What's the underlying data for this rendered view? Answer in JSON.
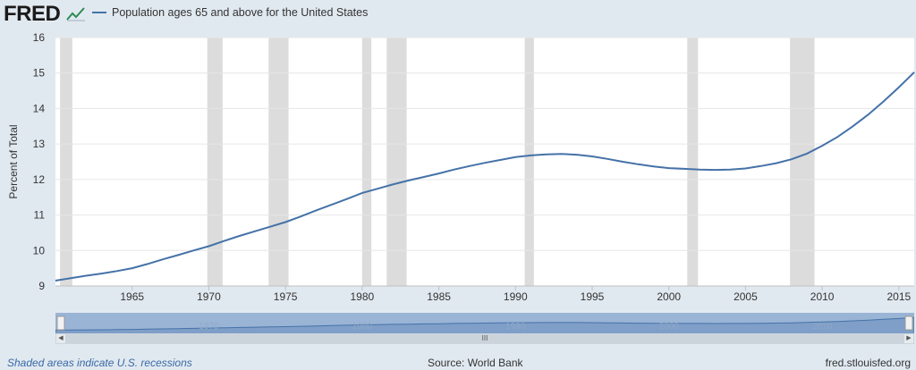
{
  "header": {
    "logo_text": "FRED"
  },
  "chart_data": {
    "type": "line",
    "title": "",
    "xlabel": "",
    "ylabel": "Percent of Total",
    "xlim": [
      1960,
      2016
    ],
    "ylim": [
      9,
      16
    ],
    "y_ticks": [
      9,
      10,
      11,
      12,
      13,
      14,
      15,
      16
    ],
    "x_ticks": [
      1965,
      1970,
      1975,
      1980,
      1985,
      1990,
      1995,
      2000,
      2005,
      2010,
      2015
    ],
    "grid": true,
    "legend_position": "top-left",
    "series": [
      {
        "name": "Population ages 65 and above for the United States",
        "color": "#4572a7",
        "x": [
          1960,
          1961,
          1962,
          1963,
          1964,
          1965,
          1966,
          1967,
          1968,
          1969,
          1970,
          1971,
          1972,
          1973,
          1974,
          1975,
          1976,
          1977,
          1978,
          1979,
          1980,
          1981,
          1982,
          1983,
          1984,
          1985,
          1986,
          1987,
          1988,
          1989,
          1990,
          1991,
          1992,
          1993,
          1994,
          1995,
          1996,
          1997,
          1998,
          1999,
          2000,
          2001,
          2002,
          2003,
          2004,
          2005,
          2006,
          2007,
          2008,
          2009,
          2010,
          2011,
          2012,
          2013,
          2014,
          2015,
          2016
        ],
        "y": [
          9.15,
          9.22,
          9.29,
          9.35,
          9.42,
          9.5,
          9.62,
          9.75,
          9.87,
          10.0,
          10.12,
          10.27,
          10.41,
          10.54,
          10.67,
          10.8,
          10.96,
          11.13,
          11.29,
          11.45,
          11.62,
          11.74,
          11.86,
          11.97,
          12.07,
          12.17,
          12.28,
          12.38,
          12.47,
          12.55,
          12.63,
          12.68,
          12.71,
          12.72,
          12.7,
          12.65,
          12.58,
          12.5,
          12.43,
          12.37,
          12.32,
          12.3,
          12.28,
          12.27,
          12.28,
          12.31,
          12.38,
          12.46,
          12.57,
          12.73,
          12.95,
          13.2,
          13.5,
          13.83,
          14.2,
          14.6,
          15.02
        ]
      }
    ],
    "recessions": [
      [
        1960.3,
        1961.1
      ],
      [
        1969.9,
        1970.9
      ],
      [
        1973.9,
        1975.2
      ],
      [
        1980.0,
        1980.6
      ],
      [
        1981.6,
        1982.9
      ],
      [
        1990.6,
        1991.2
      ],
      [
        2001.2,
        2001.9
      ],
      [
        2007.9,
        2009.5
      ]
    ],
    "navigator": {
      "x_labels": [
        1970,
        1980,
        1990,
        2000,
        2010
      ]
    }
  },
  "footer": {
    "note": "Shaded areas indicate U.S. recessions",
    "source": "Source: World Bank",
    "site": "fred.stlouisfed.org"
  }
}
